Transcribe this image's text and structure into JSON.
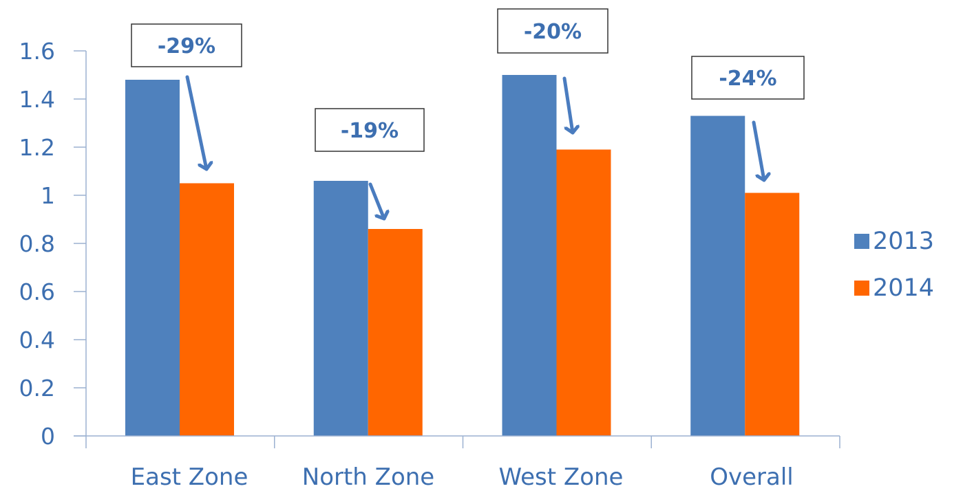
{
  "chart_data": {
    "type": "bar",
    "title": "",
    "xlabel": "",
    "ylabel": "",
    "categories": [
      "East Zone",
      "North Zone",
      "West Zone",
      "Overall"
    ],
    "series": [
      {
        "name": "2013",
        "values": [
          1.48,
          1.06,
          1.5,
          1.33
        ],
        "color": "#4f81bd"
      },
      {
        "name": "2014",
        "values": [
          1.05,
          0.86,
          1.19,
          1.01
        ],
        "color": "#ff6600"
      }
    ],
    "ylim": [
      0,
      1.6
    ],
    "y_ticks": [
      "0",
      "0.2",
      "0.4",
      "0.6",
      "0.8",
      "1",
      "1.2",
      "1.4",
      "1.6"
    ],
    "grid": false,
    "legend_position": "right",
    "axis_color": "#9bb1d1",
    "tick_label_color": "#3d6fb0",
    "annotations": [
      {
        "category": "East Zone",
        "text": "-29%"
      },
      {
        "category": "North Zone",
        "text": "-19%"
      },
      {
        "category": "West Zone",
        "text": "-20%"
      },
      {
        "category": "Overall",
        "text": "-24%"
      }
    ],
    "annotation_text_color": "#3d6fb0",
    "arrow_color": "#4a7cbf"
  }
}
